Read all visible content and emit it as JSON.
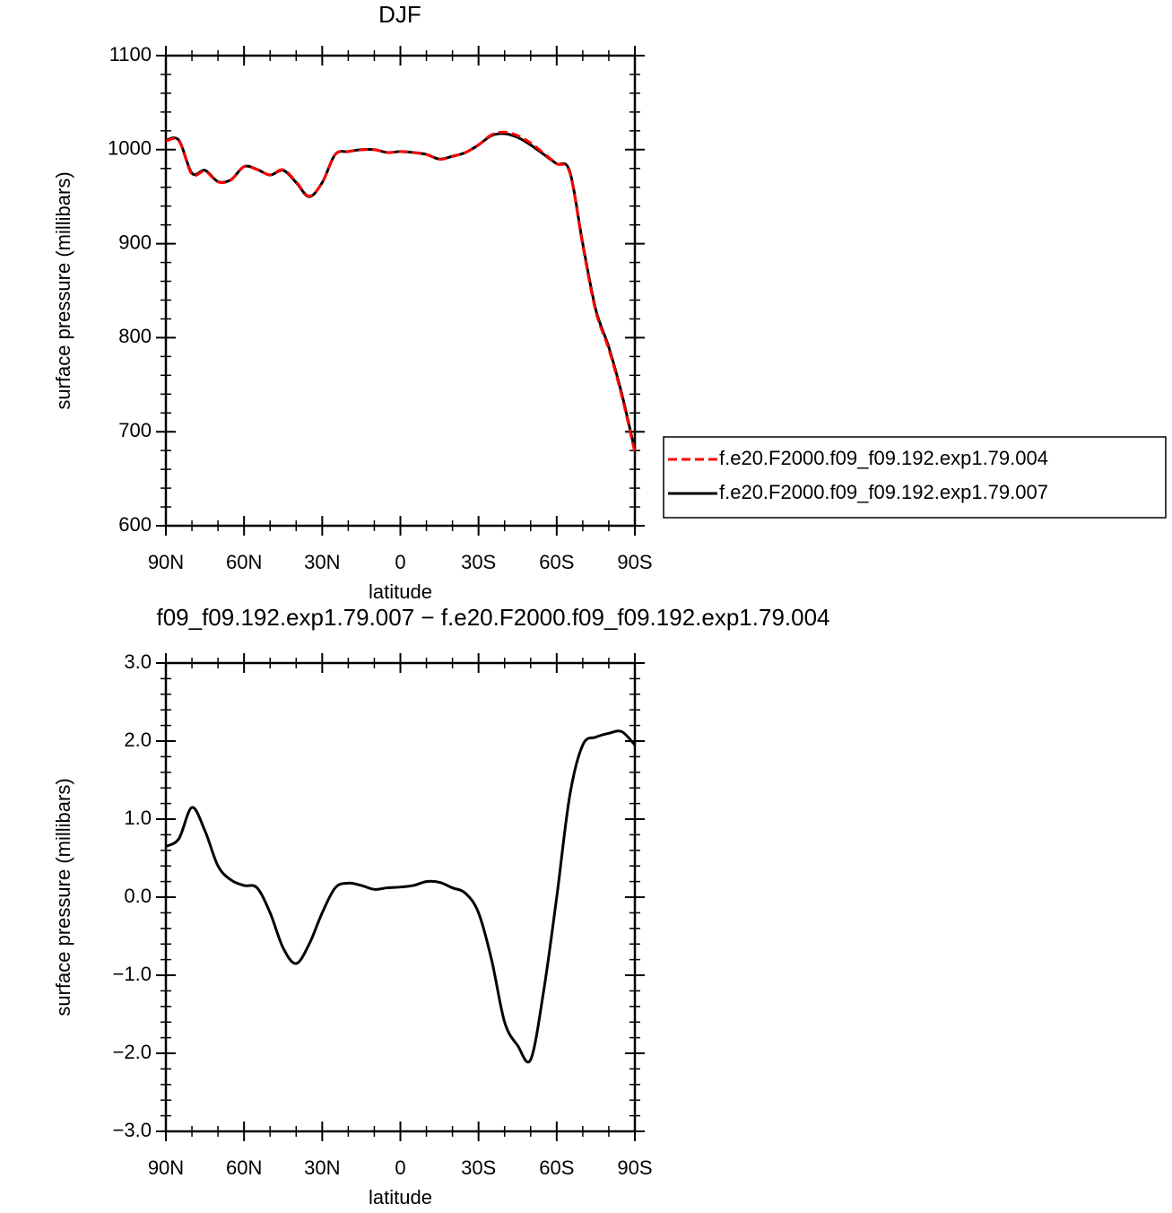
{
  "chart_data": [
    {
      "type": "line",
      "title": "DJF",
      "xlabel": "latitude",
      "ylabel": "surface pressure (millibars)",
      "x": [
        90,
        85,
        80,
        75,
        70,
        65,
        60,
        55,
        50,
        45,
        40,
        35,
        30,
        25,
        20,
        15,
        10,
        5,
        0,
        -5,
        -10,
        -15,
        -20,
        -25,
        -30,
        -35,
        -40,
        -45,
        -50,
        -55,
        -60,
        -65,
        -70,
        -75,
        -80,
        -85,
        -90
      ],
      "series": [
        {
          "name": "f.e20.F2000.f09_f09.192.exp1.79.004",
          "color": "#ff0000",
          "dash": true,
          "values": [
            1009.35,
            1009.25,
            973.85,
            977.15,
            965.6,
            967.78,
            981.85,
            978.88,
            973.2,
            978.65,
            965.85,
            950.6,
            965.2,
            994.88,
            997.82,
            999.85,
            999.9,
            996.88,
            997.87,
            996.85,
            994.8,
            989.81,
            992.88,
            996.95,
            1005.2,
            1015.8,
            1018.6,
            1014.9,
            1007.08,
            996.2,
            985,
            975.7,
            898.05,
            827.95,
            787.9,
            737.88,
            678.05
          ]
        },
        {
          "name": "f.e20.F2000.f09_f09.192.exp1.79.007",
          "color": "#000000",
          "dash": false,
          "values": [
            1010,
            1010,
            975,
            978,
            966,
            968,
            982,
            979,
            973,
            978,
            965,
            950,
            965,
            995,
            998,
            1000,
            1000,
            997,
            998,
            997,
            995,
            990,
            993,
            997,
            1005,
            1015,
            1017,
            1013,
            1005,
            995,
            985,
            977,
            900,
            830,
            790,
            740,
            680
          ]
        }
      ],
      "xlim": [
        90,
        -90
      ],
      "xticks": [
        {
          "value": 90,
          "label": "90N"
        },
        {
          "value": 60,
          "label": "60N"
        },
        {
          "value": 30,
          "label": "30N"
        },
        0,
        {
          "value": -30,
          "label": "30S"
        },
        {
          "value": -60,
          "label": "60S"
        },
        {
          "value": -90,
          "label": "90S"
        }
      ],
      "ylim": [
        600,
        1100
      ],
      "yticks": [
        600,
        700,
        800,
        900,
        1000,
        1100
      ],
      "legend": "right"
    },
    {
      "type": "line",
      "title": "f09_f09.192.exp1.79.007 − f.e20.F2000.f09_f09.192.exp1.79.004",
      "xlabel": "latitude",
      "ylabel": "surface pressure (millibars)",
      "x": [
        90,
        85,
        80,
        75,
        70,
        65,
        60,
        55,
        50,
        45,
        40,
        35,
        30,
        25,
        20,
        15,
        10,
        5,
        0,
        -5,
        -10,
        -15,
        -20,
        -25,
        -30,
        -35,
        -40,
        -45,
        -50,
        -55,
        -60,
        -65,
        -70,
        -75,
        -80,
        -85,
        -90
      ],
      "series": [
        {
          "color": "#000000",
          "dash": false,
          "values": [
            0.65,
            0.75,
            1.15,
            0.85,
            0.4,
            0.22,
            0.15,
            0.12,
            -0.2,
            -0.65,
            -0.85,
            -0.6,
            -0.2,
            0.12,
            0.18,
            0.15,
            0.1,
            0.12,
            0.13,
            0.15,
            0.2,
            0.19,
            0.12,
            0.05,
            -0.2,
            -0.8,
            -1.6,
            -1.9,
            -2.08,
            -1.2,
            0.0,
            1.3,
            1.95,
            2.05,
            2.1,
            2.12,
            1.95
          ]
        }
      ],
      "xlim": [
        90,
        -90
      ],
      "xticks": [
        {
          "value": 90,
          "label": "90N"
        },
        {
          "value": 60,
          "label": "60N"
        },
        {
          "value": 30,
          "label": "30N"
        },
        0,
        {
          "value": -30,
          "label": "30S"
        },
        {
          "value": -60,
          "label": "60S"
        },
        {
          "value": -90,
          "label": "90S"
        }
      ],
      "ylim": [
        -3,
        3
      ],
      "yticks": [
        {
          "value": -3,
          "label": "−3.0"
        },
        {
          "value": -2,
          "label": "−2.0"
        },
        {
          "value": -1,
          "label": "−1.0"
        },
        {
          "value": 0,
          "label": "0.0"
        },
        {
          "value": 1,
          "label": "1.0"
        },
        {
          "value": 2,
          "label": "2.0"
        },
        {
          "value": 3,
          "label": "3.0"
        }
      ]
    }
  ]
}
